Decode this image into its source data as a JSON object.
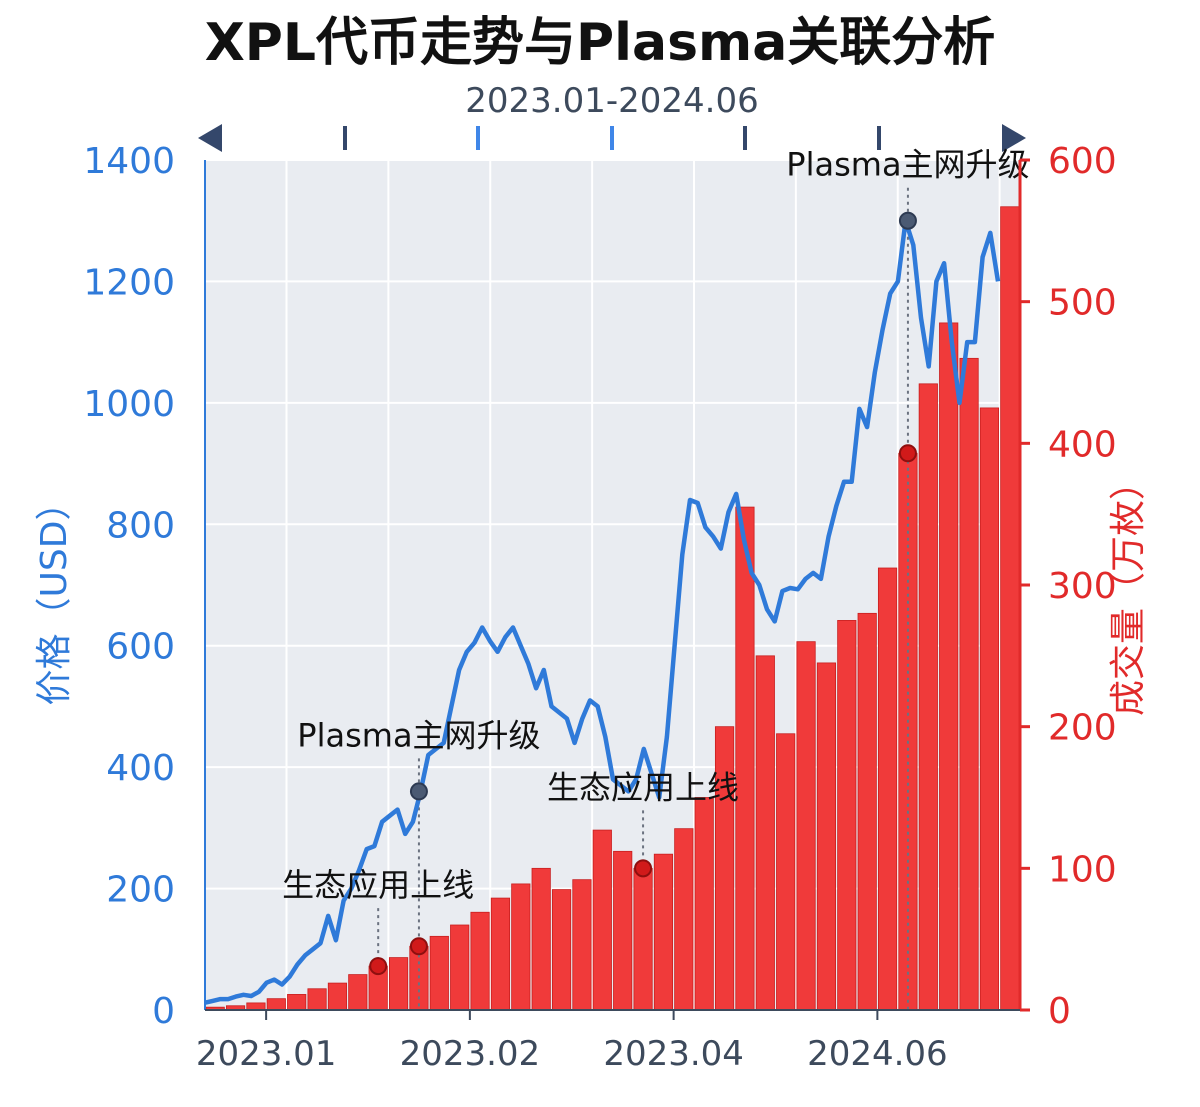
{
  "chart_data": {
    "type": "bar+line",
    "title": "XPL代币走势与Plasma关联分析",
    "subtitle": "2023.01-2024.06",
    "left_axis": {
      "label": "价格（USD）",
      "ticks": [
        0,
        200,
        400,
        600,
        800,
        1000,
        1200,
        1400
      ],
      "range": [
        0,
        1400
      ],
      "color": "#2f7ad9"
    },
    "right_axis": {
      "label": "成交量（万枚）",
      "ticks": [
        0,
        100,
        200,
        300,
        400,
        500,
        600
      ],
      "range": [
        0,
        600
      ],
      "color": "#e12a2a"
    },
    "x_ticks": [
      "2023.01",
      "2023.02",
      "2023.04",
      "2024.06"
    ],
    "grid": true,
    "colors": {
      "price": "#2f7ad9",
      "volume": "#f03a3a",
      "volume_edge": "#c81e1e",
      "plot_bg": "#e9ecf1",
      "grid": "#ffffff",
      "axis_text": "#3d4a5c"
    },
    "volume": [
      2,
      3,
      5,
      8,
      11,
      15,
      19,
      25,
      31,
      37,
      45,
      52,
      60,
      69,
      79,
      89,
      100,
      85,
      92,
      127,
      112,
      100,
      110,
      128,
      150,
      200,
      355,
      250,
      195,
      260,
      245,
      275,
      280,
      312,
      393,
      442,
      485,
      460,
      425,
      567
    ],
    "price": [
      12,
      15,
      18,
      18,
      22,
      25,
      23,
      30,
      45,
      50,
      42,
      55,
      75,
      90,
      100,
      110,
      155,
      115,
      180,
      200,
      230,
      265,
      270,
      310,
      320,
      330,
      290,
      310,
      360,
      420,
      430,
      440,
      500,
      560,
      590,
      605,
      630,
      608,
      590,
      614,
      630,
      600,
      570,
      530,
      560,
      500,
      490,
      480,
      440,
      480,
      510,
      500,
      450,
      380,
      370,
      360,
      380,
      430,
      390,
      350,
      450,
      600,
      750,
      840,
      835,
      795,
      780,
      760,
      820,
      850,
      775,
      720,
      700,
      660,
      640,
      690,
      695,
      693,
      710,
      720,
      710,
      780,
      830,
      870,
      870,
      990,
      960,
      1050,
      1120,
      1180,
      1200,
      1300,
      1260,
      1140,
      1060,
      1200,
      1230,
      1100,
      1000,
      1100,
      1100,
      1240,
      1280,
      1200
    ],
    "events": [
      {
        "label": "生态应用上线",
        "index": 8
      },
      {
        "label": "Plasma主网升级",
        "index": 10
      },
      {
        "label": "生态应用上线",
        "index": 21
      },
      {
        "label": "Plasma主网升级",
        "index": 34
      }
    ]
  }
}
